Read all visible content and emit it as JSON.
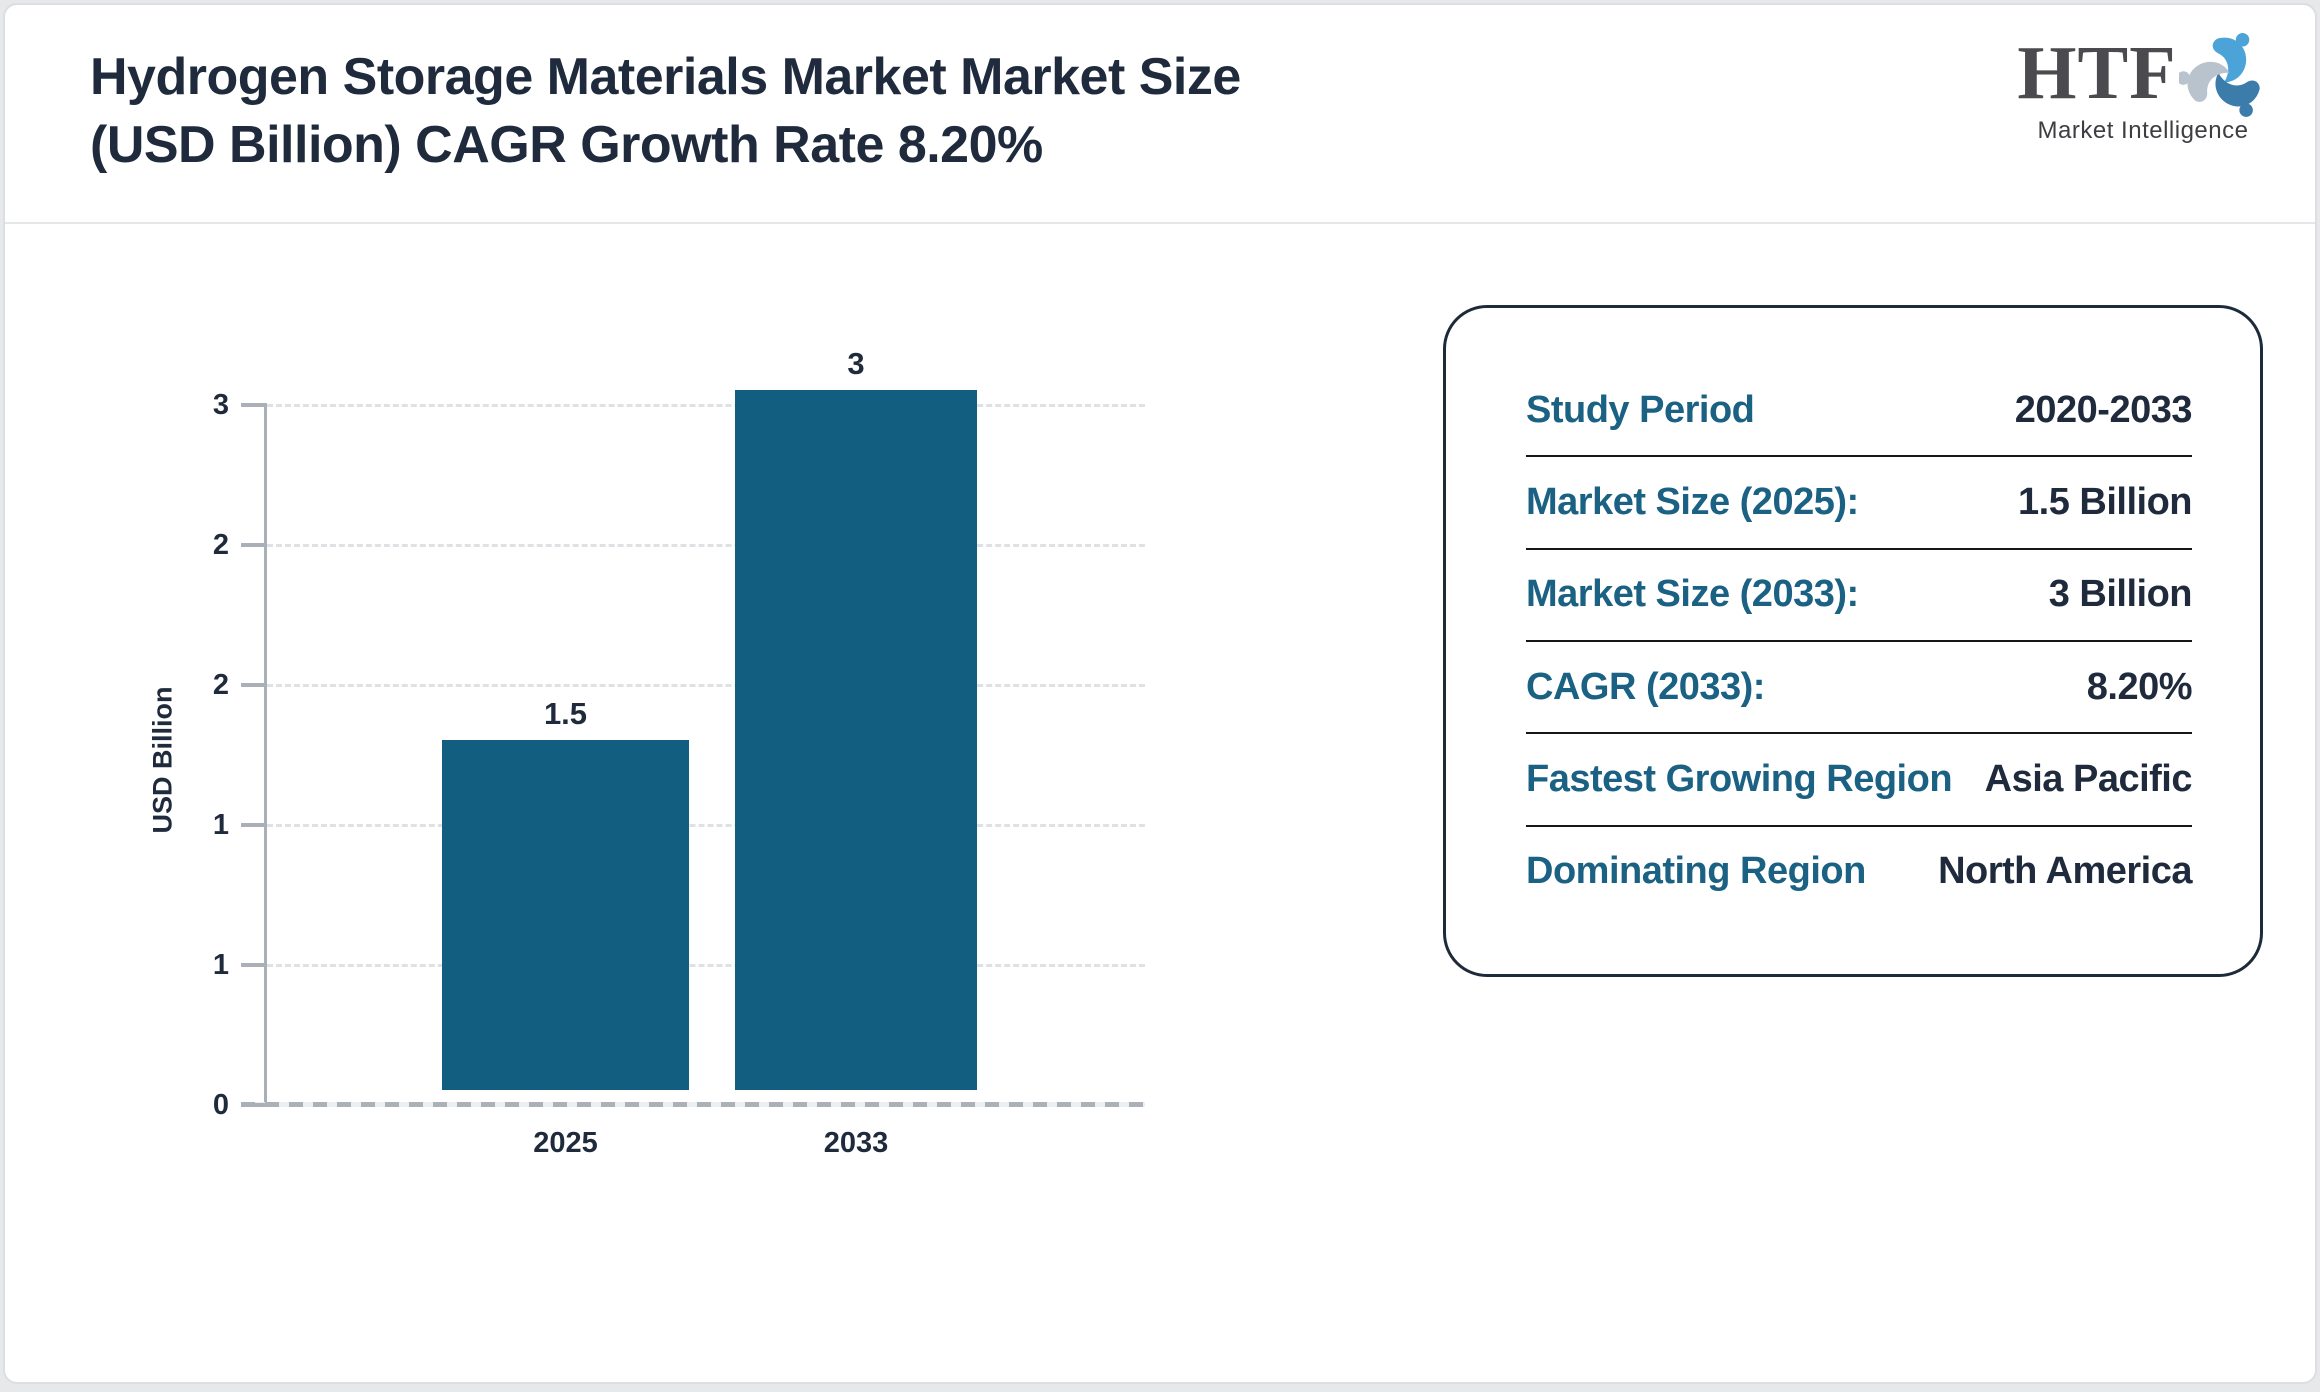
{
  "header": {
    "title_line1": "Hydrogen Storage Materials Market Market Size",
    "title_line2": "(USD Billion) CAGR Growth Rate 8.20%",
    "logo": {
      "acronym": "HTF",
      "subtitle": "Market Intelligence",
      "icon": "people-swirl-icon",
      "icon_colors": [
        "#4ba3d8",
        "#3b7cab",
        "#b9c3cd"
      ]
    }
  },
  "chart_data": {
    "type": "bar",
    "title": "Hydrogen Storage Materials Market Market Size (USD Billion) CAGR Growth Rate 8.20%",
    "categories": [
      "2025",
      "2033"
    ],
    "values": [
      1.5,
      3
    ],
    "bar_labels": [
      "1.5",
      "3"
    ],
    "xlabel": "",
    "ylabel": "USD Billion",
    "ylim": [
      0,
      3
    ],
    "ytick_labels": [
      "3",
      "2",
      "2",
      "1",
      "1",
      "0"
    ],
    "grid": "horizontal-dashed",
    "legend": "none",
    "bar_color": "#115e80"
  },
  "panel": {
    "rows": [
      {
        "label": "Study Period",
        "value": "2020-2033"
      },
      {
        "label": "Market Size (2025):",
        "value": "1.5 Billion"
      },
      {
        "label": "Market Size (2033):",
        "value": "3 Billion"
      },
      {
        "label": "CAGR (2033):",
        "value": "8.20%"
      },
      {
        "label": "Fastest Growing Region",
        "value": "Asia Pacific"
      },
      {
        "label": "Dominating Region",
        "value": "North America"
      }
    ]
  },
  "colors": {
    "title_text": "#1f2b3c",
    "panel_label": "#1a6183",
    "panel_value": "#1f2b3c",
    "bar": "#115e80",
    "axis": "#a9b0b7",
    "gridline": "#dfe1e4",
    "card_border": "#dcdee1",
    "page_background": "#e7e8ea"
  }
}
